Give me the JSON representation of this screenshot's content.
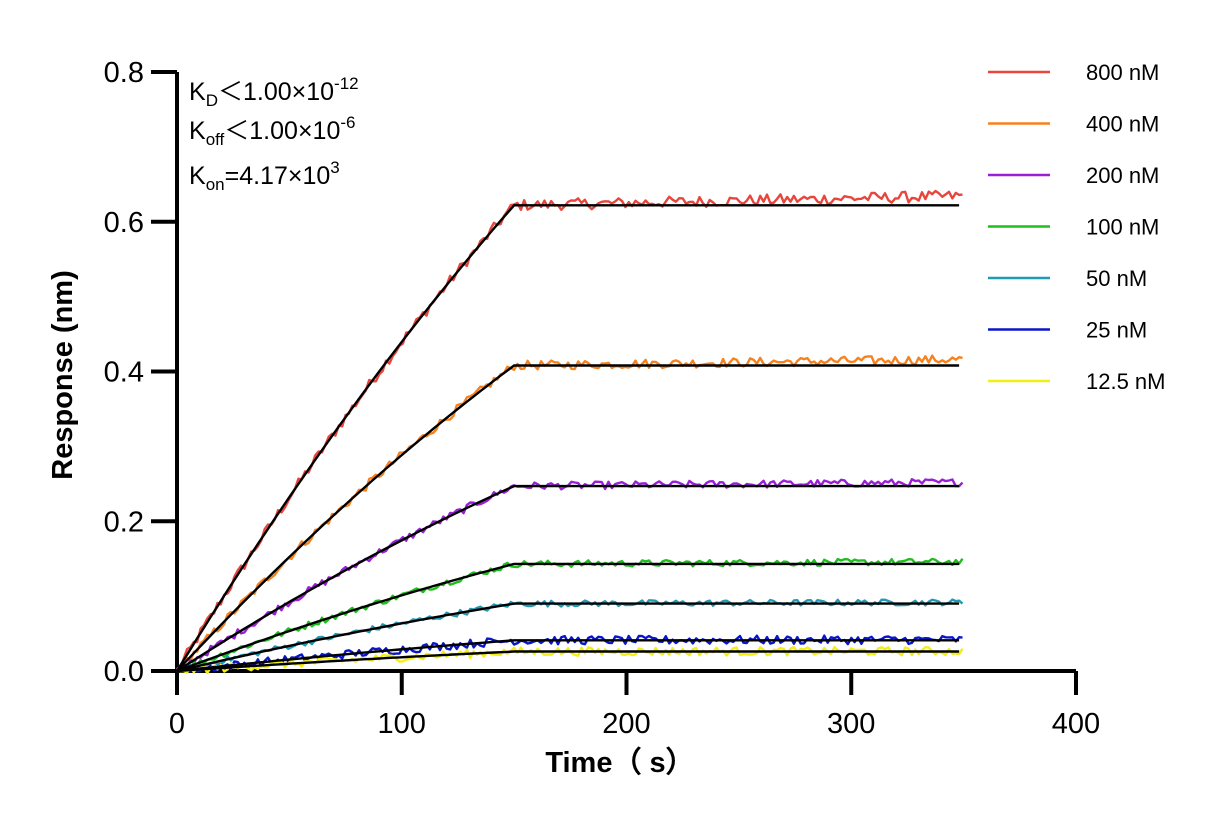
{
  "chart_data": {
    "type": "line",
    "title": "",
    "xlabel": "Time（ s）",
    "ylabel": "Response (nm)",
    "xlim": [
      0,
      400
    ],
    "ylim": [
      0,
      0.8
    ],
    "xticks": [
      0,
      100,
      200,
      300,
      400
    ],
    "yticks": [
      0.0,
      0.2,
      0.4,
      0.6,
      0.8
    ],
    "xtick_labels": [
      "0",
      "100",
      "200",
      "300",
      "400"
    ],
    "ytick_labels": [
      "0.0",
      "0.2",
      "0.4",
      "0.6",
      "0.8"
    ],
    "grid": false,
    "legend_position": "right",
    "association_end": 150,
    "time_end": 350,
    "annotations": {
      "kd": {
        "base": "K",
        "sub": "D",
        "rel": "＜1.00×10",
        "sup": "-12"
      },
      "koff": {
        "base": "K",
        "sub": "off",
        "rel": "＜1.00×10",
        "sup": "-6"
      },
      "kon": {
        "base": "K",
        "sub": "on",
        "rel": "=4.17×10",
        "sup": "3"
      }
    },
    "series": [
      {
        "name": "800 nM",
        "color": "#e8453c",
        "plateau": 0.622
      },
      {
        "name": "400 nM",
        "color": "#f5821f",
        "plateau": 0.408
      },
      {
        "name": "200 nM",
        "color": "#9b1fd6",
        "plateau": 0.247
      },
      {
        "name": "100 nM",
        "color": "#1dbf1d",
        "plateau": 0.143
      },
      {
        "name": "50 nM",
        "color": "#1f9bb4",
        "plateau": 0.09
      },
      {
        "name": "25 nM",
        "color": "#0a16c8",
        "plateau": 0.041
      },
      {
        "name": "12.5 nM",
        "color": "#f2ee16",
        "plateau": 0.026
      }
    ],
    "fit_color": "#000000"
  }
}
